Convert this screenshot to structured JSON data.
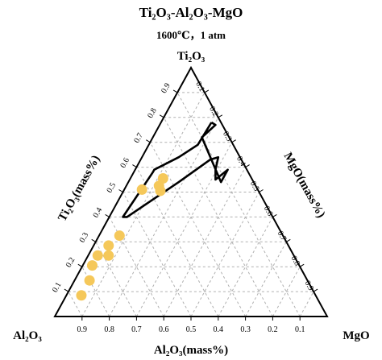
{
  "chart_data": {
    "type": "ternary",
    "title": "Ti₂O₃-Al₂O₃-MgO",
    "subtitle": "1600℃，1 atm",
    "vertices": {
      "top": "Ti₂O₃",
      "left": "Al₂O₃",
      "right": "MgO"
    },
    "axes": {
      "left": "Ti₂O₃(mass%)",
      "right": "MgO(mass%)",
      "bottom": "Al₂O₃(mass%)"
    },
    "tick_values": [
      0.1,
      0.2,
      0.3,
      0.4,
      0.5,
      0.6,
      0.7,
      0.8,
      0.9
    ],
    "tick_labels": [
      "0.1",
      "0.2",
      "0.3",
      "0.4",
      "0.5",
      "0.6",
      "0.7",
      "0.8",
      "0.9"
    ],
    "grid": true,
    "series": [
      {
        "kind": "region-outline",
        "points": [
          {
            "Ti2O3": 0.78,
            "MgO": 0.185
          },
          {
            "Ti2O3": 0.69,
            "MgO": 0.18
          },
          {
            "Ti2O3": 0.64,
            "MgO": 0.135
          },
          {
            "Ti2O3": 0.59,
            "MgO": 0.07
          },
          {
            "Ti2O3": 0.58,
            "MgO": 0.07
          },
          {
            "Ti2O3": 0.4,
            "MgO": 0.05
          },
          {
            "Ti2O3": 0.4,
            "MgO": 0.065
          },
          {
            "Ti2O3": 0.54,
            "MgO": 0.185
          },
          {
            "Ti2O3": 0.63,
            "MgO": 0.255
          },
          {
            "Ti2O3": 0.64,
            "MgO": 0.28
          },
          {
            "Ti2O3": 0.59,
            "MgO": 0.295
          },
          {
            "Ti2O3": 0.55,
            "MgO": 0.315
          },
          {
            "Ti2O3": 0.59,
            "MgO": 0.34
          },
          {
            "Ti2O3": 0.54,
            "MgO": 0.34
          },
          {
            "Ti2O3": 0.72,
            "MgO": 0.18
          },
          {
            "Ti2O3": 0.77,
            "MgO": 0.205
          },
          {
            "Ti2O3": 0.78,
            "MgO": 0.185
          }
        ]
      },
      {
        "kind": "points",
        "points": [
          {
            "Ti2O3": 0.555,
            "MgO": 0.12
          },
          {
            "Ti2O3": 0.525,
            "MgO": 0.12
          },
          {
            "Ti2O3": 0.51,
            "MgO": 0.065
          },
          {
            "Ti2O3": 0.505,
            "MgO": 0.135
          },
          {
            "Ti2O3": 0.325,
            "MgO": 0.075
          },
          {
            "Ti2O3": 0.285,
            "MgO": 0.055
          },
          {
            "Ti2O3": 0.245,
            "MgO": 0.075
          },
          {
            "Ti2O3": 0.245,
            "MgO": 0.035
          },
          {
            "Ti2O3": 0.205,
            "MgO": 0.035
          },
          {
            "Ti2O3": 0.145,
            "MgO": 0.055
          },
          {
            "Ti2O3": 0.085,
            "MgO": 0.055
          }
        ]
      }
    ]
  },
  "colors": {
    "points": "#f5c85a",
    "outline": "#000000",
    "grid": "#b0b0b0"
  }
}
